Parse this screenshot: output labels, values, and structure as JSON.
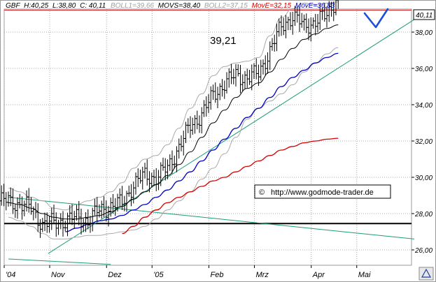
{
  "header": {
    "symbol": "GBF",
    "high": "H:40,25",
    "low": "L:38,80",
    "close": "C: 40,11",
    "boll1": "BOLL1=39,66",
    "movs": "MOVS=38,40",
    "boll2": "BOLL2=37,15",
    "move1": "MovE=32,15",
    "move2": "MovE=36,83"
  },
  "colors": {
    "grid": "#a8a8a8",
    "boll": "#a9a9a9",
    "movs": "#000000",
    "move_red": "#d40000",
    "move_blue": "#0000c8",
    "trend_green": "#1a9c7a",
    "resistance": "#d42020",
    "support": "#000000",
    "check": "#1c4fd6"
  },
  "annotation": {
    "level_label": "39,21",
    "copyright_symbol": "©",
    "copyright_url": "http://www.godmode-trader.de"
  },
  "last_price_tag": "40,11",
  "chart_data": {
    "type": "candlestick",
    "title": "",
    "y_axis": {
      "ticks": [
        "26,00",
        "28,00",
        "30,00",
        "32,00",
        "34,00",
        "36,00",
        "38,00"
      ],
      "ylim": [
        25.2,
        40.6
      ],
      "position": "right"
    },
    "x_axis": {
      "ticks": [
        "'04",
        "Nov",
        "Dez",
        "'05",
        "Feb",
        "Mrz",
        "Apr",
        "Mai"
      ],
      "tick_weeks": [
        0,
        4,
        9,
        13,
        18,
        22,
        27,
        31
      ]
    },
    "horizontal_lines": [
      {
        "name": "resistance",
        "value": 39.21
      },
      {
        "name": "support",
        "value": 27.45
      }
    ],
    "trend_lines": [
      {
        "from": [
          3.5,
          25.8
        ],
        "to": [
          35.7,
          38.7
        ]
      },
      {
        "from": [
          0,
          28.9
        ],
        "to": [
          35.7,
          26.6
        ]
      },
      {
        "from": [
          0,
          25.5
        ],
        "to": [
          9.0,
          25.2
        ]
      }
    ],
    "series": [
      {
        "name": "GBF",
        "weekly_close": [
          28.7,
          28.5,
          28.3,
          27.4,
          27.5,
          27.6,
          27.8,
          27.6,
          28.2,
          28.4,
          28.6,
          29.6,
          30.1,
          30.0,
          30.5,
          31.7,
          32.8,
          33.5,
          34.5,
          35.2,
          35.6,
          35.5,
          35.7,
          37.0,
          38.3,
          38.9,
          38.3,
          38.6,
          38.9,
          40.11
        ]
      },
      {
        "name": "BOLL1",
        "values": [
          29.4,
          29.2,
          28.9,
          28.7,
          28.3,
          28.2,
          28.5,
          28.7,
          28.9,
          29.2,
          29.7,
          30.5,
          31.0,
          31.2,
          31.8,
          32.7,
          33.8,
          34.6,
          35.6,
          36.1,
          36.3,
          36.4,
          36.6,
          37.8,
          38.8,
          39.3,
          39.6,
          39.5,
          39.6,
          39.66
        ]
      },
      {
        "name": "MOVS",
        "values": [
          28.6,
          28.5,
          28.3,
          28.0,
          27.8,
          27.7,
          27.7,
          27.8,
          27.9,
          28.1,
          28.4,
          28.8,
          29.2,
          29.6,
          30.1,
          30.7,
          31.4,
          32.2,
          33.0,
          33.7,
          34.4,
          34.9,
          35.2,
          35.8,
          36.5,
          37.1,
          37.6,
          37.9,
          38.2,
          38.4
        ]
      },
      {
        "name": "BOLL2",
        "values": [
          27.8,
          27.6,
          27.3,
          26.9,
          26.6,
          26.6,
          26.7,
          26.8,
          26.8,
          26.9,
          27.0,
          27.1,
          27.3,
          27.7,
          28.2,
          28.7,
          29.2,
          29.9,
          30.5,
          31.3,
          32.2,
          33.2,
          33.8,
          34.2,
          34.6,
          35.1,
          35.8,
          36.3,
          36.8,
          37.15
        ]
      },
      {
        "name": "MovE_red",
        "values": [
          null,
          null,
          null,
          null,
          null,
          null,
          null,
          null,
          null,
          null,
          26.9,
          27.3,
          27.8,
          28.2,
          28.6,
          28.9,
          29.2,
          29.5,
          29.8,
          30.0,
          30.3,
          30.6,
          30.9,
          31.2,
          31.5,
          31.7,
          31.9,
          32.0,
          32.1,
          32.15
        ]
      },
      {
        "name": "MovE_blue",
        "values": [
          null,
          null,
          null,
          null,
          null,
          27.0,
          27.2,
          27.4,
          27.6,
          27.7,
          27.9,
          28.2,
          28.5,
          28.9,
          29.3,
          29.8,
          30.3,
          30.9,
          31.5,
          32.1,
          32.7,
          33.3,
          33.8,
          34.4,
          35.0,
          35.5,
          35.9,
          36.3,
          36.6,
          36.83
        ]
      }
    ]
  }
}
